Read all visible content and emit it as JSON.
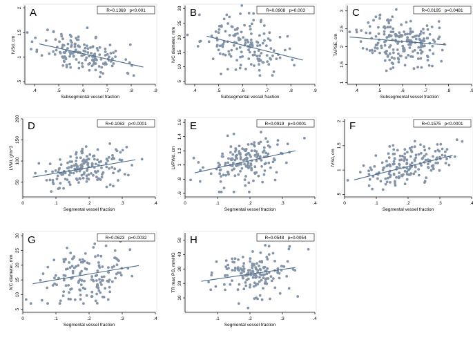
{
  "figure": {
    "colors": {
      "point": "#8494a8",
      "fit_line": "#4a6a8c",
      "axis": "#000000",
      "frame": "#d8d8d8"
    },
    "panels": [
      "A",
      "B",
      "C",
      "D",
      "E",
      "F",
      "G",
      "H"
    ]
  },
  "chart_data": [
    {
      "panel": "A",
      "type": "scatter",
      "stats_label": "R=0.1369   p<0.001",
      "xlabel": "Subsegmental vessel fraction",
      "ylabel": "IVSd, cm",
      "xlim": [
        0.36,
        0.9
      ],
      "ylim": [
        0.45,
        2.05
      ],
      "xticks": [
        ".4",
        ".5",
        ".6",
        ".7",
        ".8",
        ".9"
      ],
      "xtick_values": [
        0.4,
        0.5,
        0.6,
        0.7,
        0.8,
        0.9
      ],
      "yticks": [
        ".5",
        "1",
        "1.5",
        "2"
      ],
      "ytick_values": [
        0.5,
        1.0,
        1.5,
        2.0
      ],
      "fit_line": {
        "x": [
          0.42,
          0.85
        ],
        "y": [
          1.27,
          0.8
        ]
      },
      "points": {
        "count": 160,
        "x_mean": 0.6,
        "x_sd": 0.085,
        "y_sd": 0.2,
        "y_clip": [
          0.6,
          2.05
        ],
        "seed": 11
      }
    },
    {
      "panel": "B",
      "type": "scatter",
      "stats_label": "R=0.0908   p=0.003",
      "xlabel": "Subsegmental vessel fraction",
      "ylabel": "IVC diameter, mm",
      "xlim": [
        0.36,
        0.9
      ],
      "ylim": [
        4,
        31
      ],
      "xticks": [
        ".4",
        ".5",
        ".6",
        ".7",
        ".8",
        ".9"
      ],
      "xtick_values": [
        0.4,
        0.5,
        0.6,
        0.7,
        0.8,
        0.9
      ],
      "yticks": [
        "5",
        "10",
        "15",
        "20",
        "25",
        "30"
      ],
      "ytick_values": [
        5,
        10,
        15,
        20,
        25,
        30
      ],
      "fit_line": {
        "x": [
          0.45,
          0.85
        ],
        "y": [
          20.5,
          12.3
        ]
      },
      "points": {
        "count": 150,
        "x_mean": 0.6,
        "x_sd": 0.085,
        "y_sd": 4.6,
        "y_clip": [
          7,
          31
        ],
        "seed": 23
      }
    },
    {
      "panel": "C",
      "type": "scatter",
      "stats_label": "R=0.0195   p=0.0481",
      "xlabel": "Subsegmental vessel fraction",
      "ylabel": "TAPSE, cm",
      "xlim": [
        0.36,
        0.9
      ],
      "ylim": [
        0.95,
        3.15
      ],
      "xticks": [
        ".4",
        ".5",
        ".6",
        ".7",
        ".8",
        ".9"
      ],
      "xtick_values": [
        0.4,
        0.5,
        0.6,
        0.7,
        0.8,
        0.9
      ],
      "yticks": [
        "1",
        "1.5",
        "2",
        "2.5",
        "3"
      ],
      "ytick_values": [
        1.0,
        1.5,
        2.0,
        2.5,
        3.0
      ],
      "fit_line": {
        "x": [
          0.37,
          0.79
        ],
        "y": [
          2.27,
          2.05
        ]
      },
      "points": {
        "count": 200,
        "x_mean": 0.59,
        "x_sd": 0.08,
        "y_sd": 0.36,
        "y_clip": [
          1.05,
          3.1
        ],
        "seed": 37
      }
    },
    {
      "panel": "D",
      "type": "scatter",
      "stats_label": "R=0.1063   p<0.0001",
      "xlabel": "Segmental vessel fraction",
      "ylabel": "LVMI, g/m^2",
      "xlim": [
        0.0,
        0.4
      ],
      "ylim": [
        15,
        200
      ],
      "xticks": [
        "0",
        ".1",
        ".2",
        ".3",
        ".4"
      ],
      "xtick_values": [
        0.0,
        0.1,
        0.2,
        0.3,
        0.4
      ],
      "yticks": [
        "50",
        "100",
        "150",
        "200"
      ],
      "ytick_values": [
        50,
        100,
        150,
        200
      ],
      "fit_line": {
        "x": [
          0.03,
          0.34
        ],
        "y": [
          62,
          103
        ]
      },
      "points": {
        "count": 170,
        "x_mean": 0.19,
        "x_sd": 0.065,
        "y_sd": 21,
        "y_clip": [
          28,
          170
        ],
        "seed": 41
      }
    },
    {
      "panel": "E",
      "type": "scatter",
      "stats_label": "R=0.0919   p=0.0001",
      "xlabel": "Segmental vessel fraction",
      "ylabel": "LVPWd, cm",
      "xlim": [
        0.0,
        0.4
      ],
      "ylim": [
        0.55,
        1.65
      ],
      "xticks": [
        "0",
        ".1",
        ".2",
        ".3",
        ".4"
      ],
      "xtick_values": [
        0.0,
        0.1,
        0.2,
        0.3,
        0.4
      ],
      "yticks": [
        ".6",
        ".8",
        "1",
        "1.2",
        "1.4",
        "1.6"
      ],
      "ytick_values": [
        0.6,
        0.8,
        1.0,
        1.2,
        1.4,
        1.6
      ],
      "fit_line": {
        "x": [
          0.03,
          0.34
        ],
        "y": [
          0.89,
          1.2
        ]
      },
      "points": {
        "count": 170,
        "x_mean": 0.19,
        "x_sd": 0.065,
        "y_sd": 0.17,
        "y_clip": [
          0.62,
          1.58
        ],
        "seed": 53
      }
    },
    {
      "panel": "F",
      "type": "scatter",
      "stats_label": "R=0.1575   p<0.0001",
      "xlabel": "Segmental vessel fraction",
      "ylabel": "IVSd, cm",
      "xlim": [
        0.0,
        0.4
      ],
      "ylim": [
        0.45,
        2.05
      ],
      "xticks": [
        "0",
        ".1",
        ".2",
        ".3",
        ".4"
      ],
      "xtick_values": [
        0.0,
        0.1,
        0.2,
        0.3,
        0.4
      ],
      "yticks": [
        ".5",
        "1",
        "1.5",
        "2"
      ],
      "ytick_values": [
        0.5,
        1.0,
        1.5,
        2.0
      ],
      "fit_line": {
        "x": [
          0.03,
          0.34
        ],
        "y": [
          0.8,
          1.3
        ]
      },
      "points": {
        "count": 170,
        "x_mean": 0.19,
        "x_sd": 0.065,
        "y_sd": 0.19,
        "y_clip": [
          0.6,
          2.02
        ],
        "seed": 67
      }
    },
    {
      "panel": "G",
      "type": "scatter",
      "stats_label": "R=0.0623   p=0.0032",
      "xlabel": "Segmental vessel fraction",
      "ylabel": "IVC diameter, mm",
      "xlim": [
        0.0,
        0.4
      ],
      "ylim": [
        4,
        31
      ],
      "xticks": [
        "0",
        ".1",
        ".2",
        ".3",
        ".4"
      ],
      "xtick_values": [
        0.0,
        0.1,
        0.2,
        0.3,
        0.4
      ],
      "yticks": [
        "5",
        "10",
        "15",
        "20",
        "25",
        "30"
      ],
      "ytick_values": [
        5,
        10,
        15,
        20,
        25,
        30
      ],
      "fit_line": {
        "x": [
          0.03,
          0.35
        ],
        "y": [
          13.7,
          19.9
        ]
      },
      "points": {
        "count": 150,
        "x_mean": 0.19,
        "x_sd": 0.065,
        "y_sd": 4.8,
        "y_clip": [
          7,
          30.5
        ],
        "seed": 79
      }
    },
    {
      "panel": "H",
      "type": "scatter",
      "stats_label": "R=0.0548   p=0.0054",
      "xlabel": "Segmental vessel fraction",
      "ylabel": "TR max PG, mmHG",
      "xlim": [
        0.0,
        0.4
      ],
      "ylim": [
        0,
        55
      ],
      "xticks": [
        ".1",
        ".2",
        ".3",
        ".4"
      ],
      "xtick_values": [
        0.1,
        0.2,
        0.3,
        0.4
      ],
      "yticks": [
        "10",
        "20",
        "30",
        "40",
        "50"
      ],
      "ytick_values": [
        10,
        20,
        30,
        40,
        50
      ],
      "fit_line": {
        "x": [
          0.05,
          0.34
        ],
        "y": [
          21.5,
          31
        ]
      },
      "points": {
        "count": 160,
        "x_mean": 0.2,
        "x_sd": 0.06,
        "y_sd": 8.5,
        "y_clip": [
          3,
          53
        ],
        "seed": 97
      }
    }
  ]
}
